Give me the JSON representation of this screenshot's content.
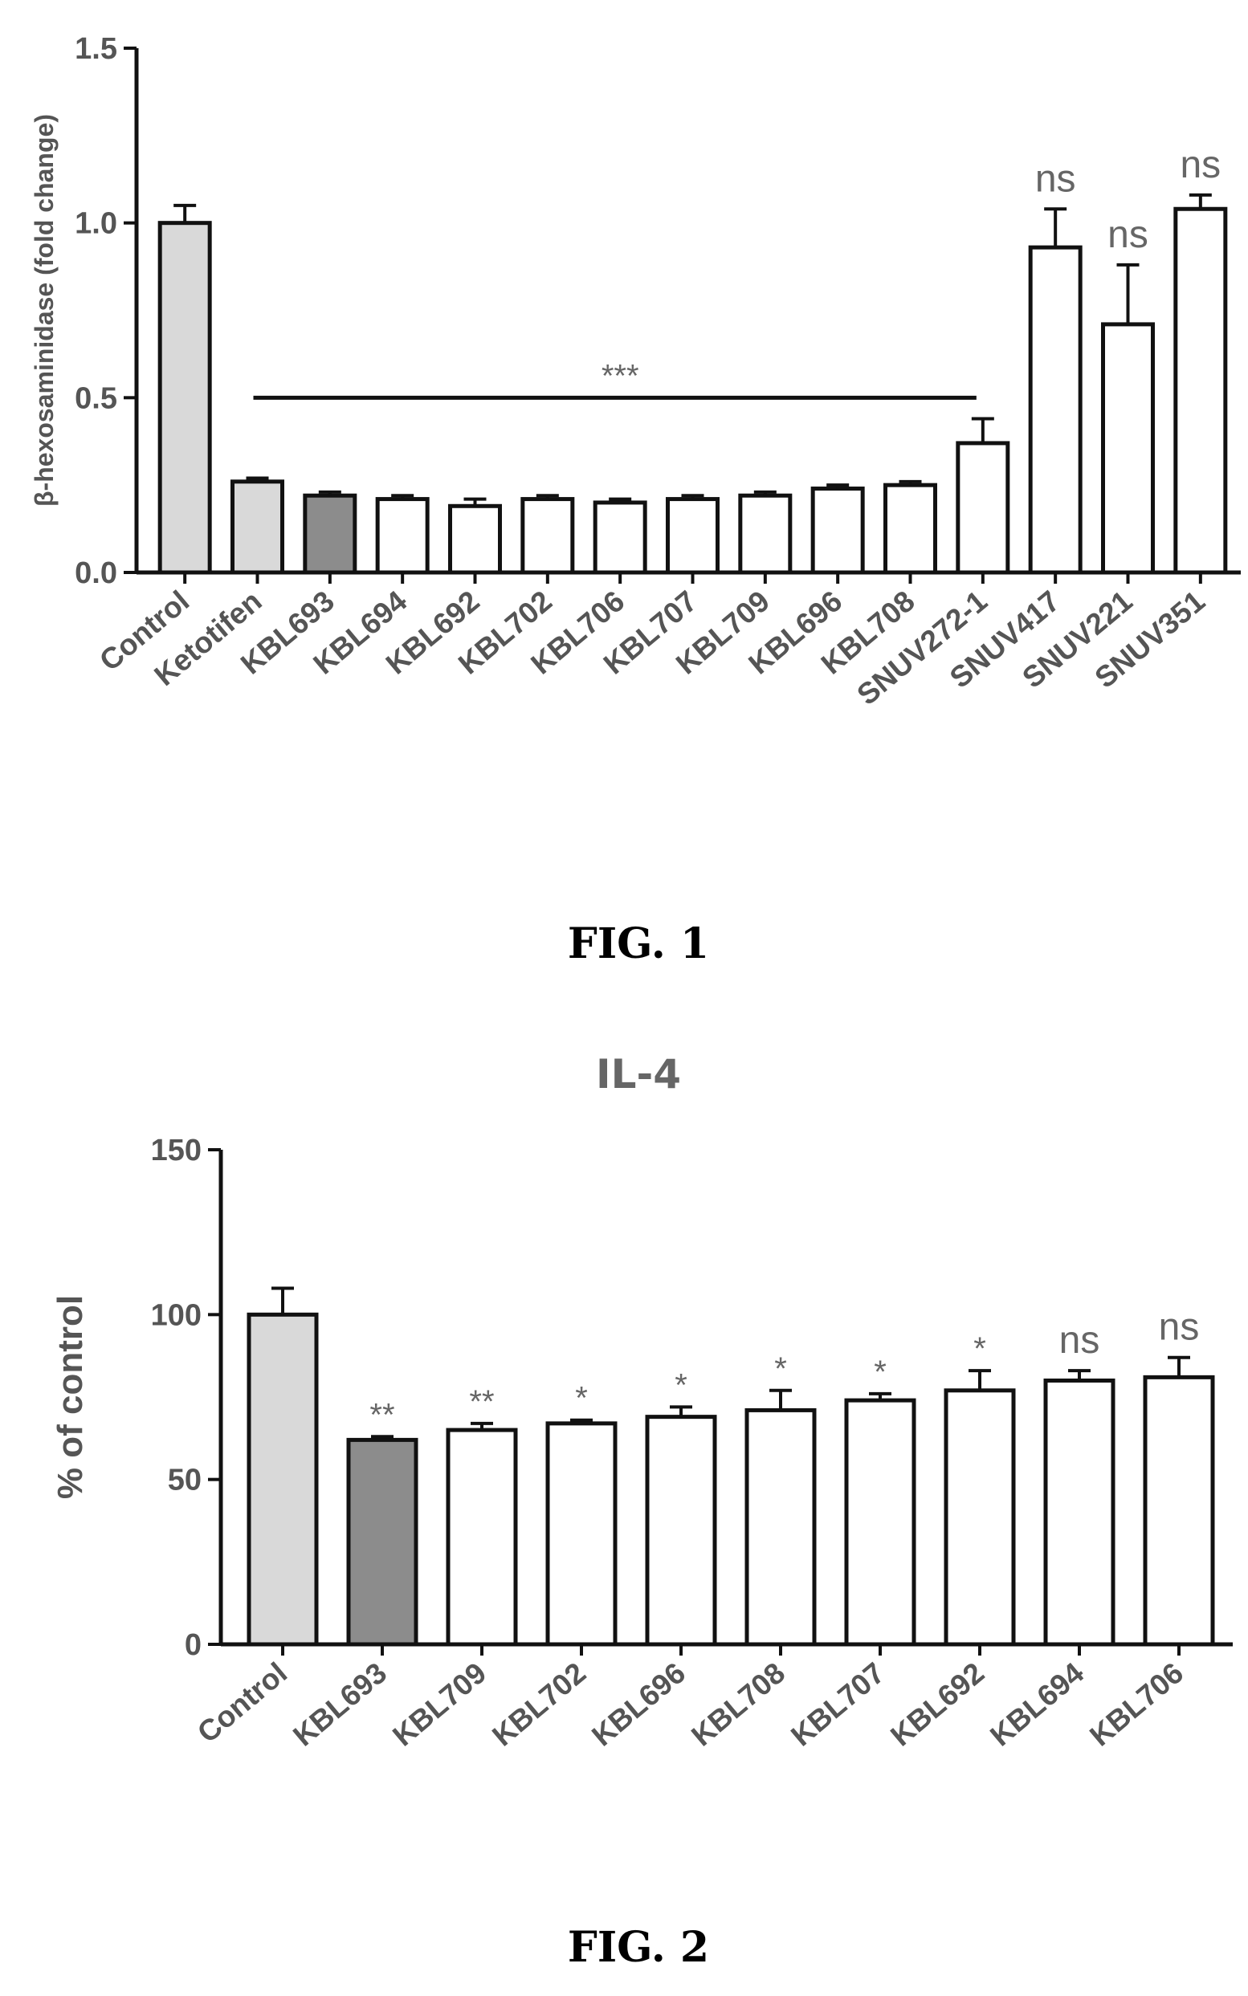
{
  "figures": {
    "fig1_caption": "FIG. 1",
    "fig2_caption": "FIG. 2",
    "fig2_title": "IL-4"
  },
  "colors": {
    "axis": "#111111",
    "light_gray_bar": "#d9d9d9",
    "dark_gray_bar": "#8c8c8c",
    "white_bar": "#ffffff",
    "label_text": "#555555"
  },
  "chart_data": [
    {
      "type": "bar",
      "title": "",
      "xlabel": "",
      "ylabel": "β-hexosaminidase (fold change)",
      "ylim": [
        0,
        1.5
      ],
      "yticks": [
        "0.0",
        "0.5",
        "1.0",
        "1.5"
      ],
      "categories": [
        "Control",
        "Ketotifen",
        "KBL693",
        "KBL694",
        "KBL692",
        "KBL702",
        "KBL706",
        "KBL707",
        "KBL709",
        "KBL696",
        "KBL708",
        "SNUV272-1",
        "SNUV417",
        "SNUV221",
        "SNUV351"
      ],
      "values": [
        1.0,
        0.26,
        0.22,
        0.21,
        0.19,
        0.21,
        0.2,
        0.21,
        0.22,
        0.24,
        0.25,
        0.37,
        0.93,
        0.71,
        1.04
      ],
      "errors": [
        0.05,
        0.01,
        0.01,
        0.01,
        0.02,
        0.01,
        0.01,
        0.01,
        0.01,
        0.01,
        0.01,
        0.07,
        0.11,
        0.17,
        0.04
      ],
      "bar_colors": [
        "light",
        "light",
        "dark",
        "white",
        "white",
        "white",
        "white",
        "white",
        "white",
        "white",
        "white",
        "white",
        "white",
        "white",
        "white"
      ],
      "significance": [
        "",
        "",
        "",
        "",
        "",
        "",
        "",
        "",
        "",
        "",
        "",
        "",
        "ns",
        "ns",
        "ns"
      ],
      "bracket": {
        "from": "Ketotifen",
        "to": "SNUV272-1",
        "y": 0.5,
        "label": "***"
      }
    },
    {
      "type": "bar",
      "title": "IL-4",
      "xlabel": "",
      "ylabel": "% of control",
      "ylim": [
        0,
        150
      ],
      "yticks": [
        "0",
        "50",
        "100",
        "150"
      ],
      "categories": [
        "Control",
        "KBL693",
        "KBL709",
        "KBL702",
        "KBL696",
        "KBL708",
        "KBL707",
        "KBL692",
        "KBL694",
        "KBL706"
      ],
      "values": [
        100,
        62,
        65,
        67,
        69,
        71,
        74,
        77,
        80,
        81
      ],
      "errors": [
        8,
        1,
        2,
        1,
        3,
        6,
        2,
        6,
        3,
        6
      ],
      "bar_colors": [
        "light",
        "dark",
        "white",
        "white",
        "white",
        "white",
        "white",
        "white",
        "white",
        "white"
      ],
      "significance": [
        "",
        "**",
        "**",
        "*",
        "*",
        "*",
        "*",
        "*",
        "ns",
        "ns"
      ]
    }
  ]
}
